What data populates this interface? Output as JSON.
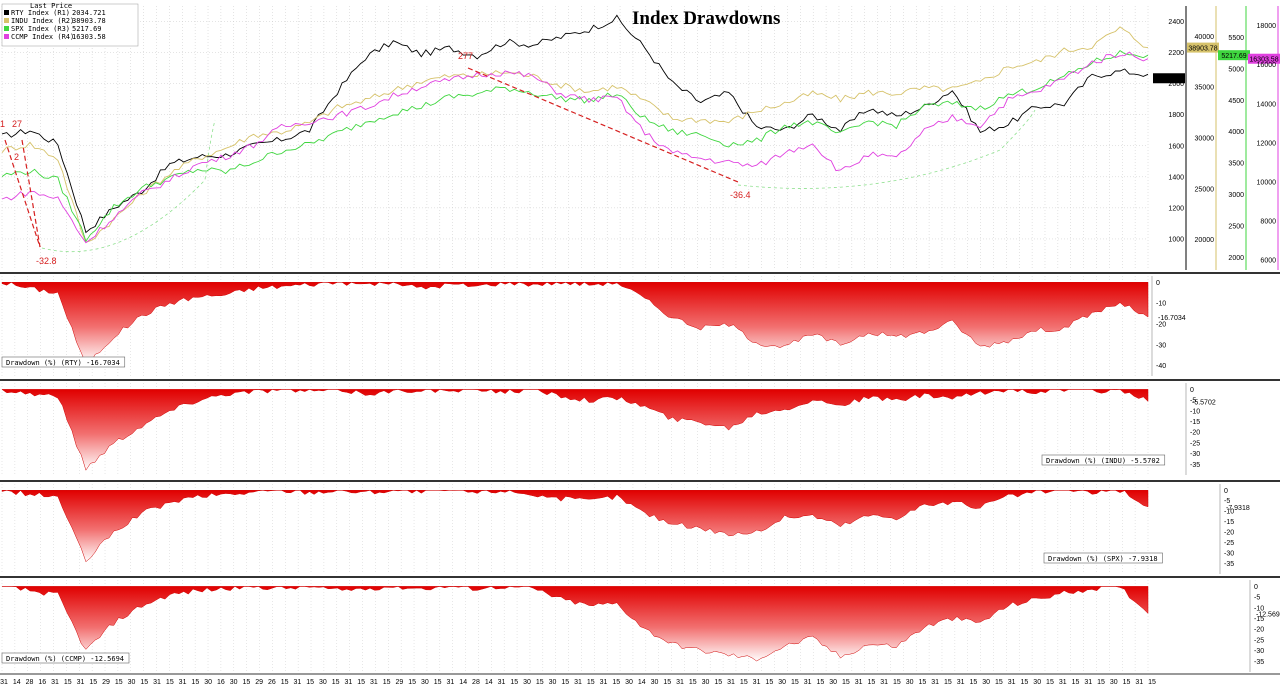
{
  "chart_data": [
    {
      "type": "line",
      "title": "Index Drawdowns",
      "legend": {
        "header": "Last Price",
        "placement": "top-left",
        "entries": [
          {
            "label": "RTY Index  (R1)",
            "value": "2034.721",
            "color": "#000000"
          },
          {
            "label": "INDU Index  (R2)",
            "value": "38903.78",
            "color": "#d6c26a"
          },
          {
            "label": "SPX Index  (R3)",
            "value": "5217.69",
            "color": "#3fd63f"
          },
          {
            "label": "CCMP Index  (R4)",
            "value": "16303.58",
            "color": "#e040e0"
          }
        ]
      },
      "axes": [
        {
          "name": "R1",
          "color": "#000000",
          "ylim": [
            800,
            2500
          ],
          "ticks": [
            "2400",
            "2200",
            "2000",
            "1800",
            "1600",
            "1400",
            "1200",
            "1000"
          ],
          "last_label": "2034.721"
        },
        {
          "name": "R2",
          "color": "#d6c26a",
          "ylim": [
            17000,
            43000
          ],
          "ticks": [
            "40000",
            "35000",
            "30000",
            "25000",
            "20000"
          ],
          "last_label": "38903.78"
        },
        {
          "name": "R3",
          "color": "#3fd63f",
          "ylim": [
            1800,
            6000
          ],
          "ticks": [
            "5500",
            "5000",
            "4500",
            "4000",
            "3500",
            "3000",
            "2500",
            "2000"
          ],
          "last_label": "5217.69"
        },
        {
          "name": "R4",
          "color": "#e040e0",
          "ylim": [
            5500,
            19000
          ],
          "ticks": [
            "18000",
            "16000",
            "14000",
            "12000",
            "10000",
            "8000",
            "6000"
          ],
          "last_label": "16303.58"
        }
      ],
      "series": [
        {
          "name": "RTY Index",
          "axis": "R1",
          "color": "#000000",
          "values": [
            1660,
            1700,
            1610,
            1050,
            1200,
            1310,
            1480,
            1530,
            1540,
            1600,
            1640,
            1700,
            1950,
            2170,
            2270,
            2190,
            2230,
            2180,
            2270,
            2250,
            2300,
            2350,
            2420,
            2230,
            2000,
            1880,
            1940,
            1720,
            1700,
            1800,
            1700,
            1840,
            1790,
            1850,
            1960,
            1690,
            1740,
            1850,
            1870,
            2050,
            2080,
            2060
          ]
        },
        {
          "name": "INDU Index",
          "axis": "R2",
          "color": "#d6c26a",
          "values": [
            28800,
            29400,
            28000,
            19600,
            22000,
            24500,
            26500,
            28000,
            29000,
            30300,
            30600,
            31500,
            33000,
            33700,
            34700,
            35600,
            36100,
            36200,
            36500,
            36100,
            35200,
            34600,
            35100,
            33600,
            31900,
            31800,
            31600,
            32700,
            33400,
            34400,
            33800,
            34500,
            34400,
            34900,
            34800,
            35500,
            37000,
            37500,
            38600,
            39100,
            40800,
            38904
          ]
        },
        {
          "name": "SPX Index",
          "axis": "R3",
          "color": "#3fd63f",
          "values": [
            3300,
            3380,
            3230,
            2300,
            2800,
            3100,
            3260,
            3400,
            3360,
            3520,
            3700,
            3800,
            3980,
            4150,
            4300,
            4400,
            4550,
            4600,
            4700,
            4620,
            4530,
            4500,
            4600,
            4200,
            4000,
            3950,
            3800,
            3850,
            4100,
            4150,
            3950,
            4170,
            4100,
            4400,
            4450,
            4370,
            4580,
            4700,
            4870,
            5100,
            5250,
            5218
          ]
        },
        {
          "name": "CCMP Index",
          "axis": "R4",
          "color": "#e040e0",
          "values": [
            9100,
            9500,
            9150,
            6900,
            8200,
            9400,
            10100,
            10900,
            11300,
            11900,
            12800,
            13100,
            13400,
            13800,
            14400,
            14900,
            15200,
            15500,
            15600,
            15400,
            14500,
            14200,
            14300,
            12500,
            11500,
            11200,
            11000,
            10800,
            11500,
            12000,
            10500,
            11400,
            11200,
            12600,
            13300,
            12900,
            14200,
            14600,
            15300,
            16100,
            16600,
            16304
          ]
        }
      ],
      "annotations": [
        "1",
        "27",
        "2",
        "-32.8",
        "277",
        "-36.4"
      ]
    },
    {
      "type": "area",
      "label": "Drawdown (%) (RTY)",
      "last": "-16.7034",
      "ylim": [
        -45,
        3
      ],
      "ticks": [
        "0",
        "-10",
        "-20",
        "-30",
        "-40"
      ],
      "values": [
        0,
        -3,
        -5,
        -40,
        -26,
        -16,
        -10,
        -7,
        -6,
        -3,
        -2,
        -1,
        0,
        -1,
        0,
        -3,
        -1,
        -2,
        0,
        -1,
        0,
        -1,
        0,
        -8,
        -17,
        -22,
        -20,
        -29,
        -31,
        -25,
        -30,
        -24,
        -26,
        -24,
        -19,
        -31,
        -28,
        -23,
        -22,
        -15,
        -10,
        -16.7
      ]
    },
    {
      "type": "area",
      "label": "Drawdown (%) (INDU)",
      "last": "-5.5702",
      "ylim": [
        -40,
        3
      ],
      "ticks": [
        "0",
        "-5",
        "-10",
        "-15",
        "-20",
        "-25",
        "-30",
        "-35"
      ],
      "values": [
        0,
        -2,
        -3,
        -37,
        -25,
        -17,
        -10,
        -5,
        -2,
        -1,
        0,
        -1,
        0,
        -2,
        -1,
        0,
        -1,
        0,
        -1,
        0,
        -3,
        -5,
        -4,
        -8,
        -14,
        -15,
        -18,
        -11,
        -9,
        -5,
        -7,
        -4,
        -5,
        -3,
        -4,
        -2,
        0,
        -1,
        0,
        -1,
        0,
        -5.6
      ]
    },
    {
      "type": "area",
      "label": "Drawdown (%) (SPX)",
      "last": "-7.9318",
      "ylim": [
        -40,
        3
      ],
      "ticks": [
        "0",
        "-5",
        "-10",
        "-15",
        "-20",
        "-25",
        "-30",
        "-35"
      ],
      "values": [
        0,
        -2,
        -3,
        -34,
        -20,
        -11,
        -6,
        -3,
        -2,
        -1,
        0,
        -1,
        0,
        -1,
        0,
        -1,
        0,
        -1,
        0,
        -2,
        -4,
        -5,
        -3,
        -11,
        -16,
        -18,
        -21,
        -20,
        -13,
        -12,
        -17,
        -12,
        -13,
        -7,
        -6,
        -8,
        -3,
        -1,
        0,
        -1,
        0,
        -7.9
      ]
    },
    {
      "type": "area",
      "label": "Drawdown (%) (CCMP)",
      "last": "-12.5694",
      "ylim": [
        -40,
        3
      ],
      "ticks": [
        "0",
        "-5",
        "-10",
        "-15",
        "-20",
        "-25",
        "-30",
        "-35"
      ],
      "values": [
        0,
        -2,
        -4,
        -30,
        -17,
        -9,
        -4,
        -2,
        -1,
        0,
        -1,
        0,
        -2,
        -1,
        0,
        -1,
        0,
        -1,
        0,
        -1,
        -6,
        -9,
        -8,
        -20,
        -27,
        -30,
        -32,
        -34,
        -28,
        -24,
        -33,
        -27,
        -28,
        -19,
        -15,
        -17,
        -9,
        -6,
        -3,
        -1,
        0,
        -12.6
      ]
    }
  ],
  "x_axis": {
    "ticks": [
      "31",
      "14",
      "28",
      "16",
      "31",
      "15",
      "31",
      "15",
      "29",
      "15",
      "30",
      "15",
      "31",
      "15",
      "31",
      "15",
      "30",
      "16",
      "30",
      "15",
      "29",
      "26",
      "15",
      "31",
      "15",
      "30",
      "15",
      "31",
      "15",
      "31",
      "15",
      "29",
      "15",
      "30",
      "15",
      "31",
      "14",
      "28",
      "14",
      "31",
      "15",
      "30",
      "15",
      "30",
      "15",
      "31",
      "15",
      "31",
      "15",
      "30",
      "14",
      "30",
      "15",
      "31",
      "15",
      "30",
      "15",
      "31",
      "15",
      "31",
      "15",
      "30",
      "15",
      "31",
      "15",
      "30",
      "15",
      "31",
      "15",
      "31",
      "15",
      "30",
      "15",
      "31",
      "15",
      "31",
      "15",
      "30",
      "15",
      "31",
      "15",
      "30",
      "15",
      "31",
      "15",
      "31",
      "15",
      "30",
      "15",
      "31",
      "15"
    ]
  }
}
